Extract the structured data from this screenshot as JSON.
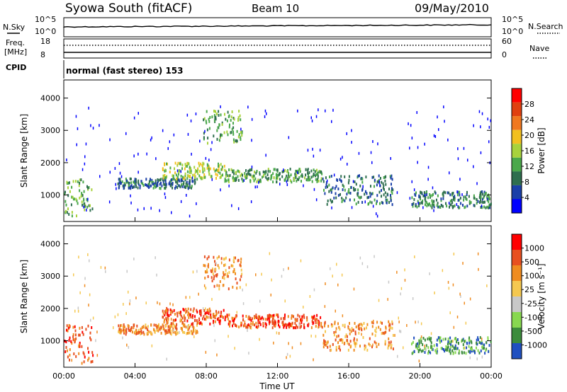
{
  "header": {
    "station": "Syowa South (fitACF)",
    "beam": "Beam 10",
    "date": "09/May/2010"
  },
  "noise_panel": {
    "left_label": "N.Sky",
    "right_label": "N.Search",
    "left_ticks": [
      "10^5",
      "10^0"
    ],
    "right_ticks": [
      "10^5",
      "10^0"
    ]
  },
  "freq_panel": {
    "left_label_1": "Freq.",
    "left_label_2": "[MHz]",
    "right_label": "Nave",
    "left_ticks": [
      "18",
      "8"
    ],
    "right_ticks": [
      "60",
      "0"
    ]
  },
  "cpid": {
    "label": "CPID",
    "value": "normal (fast stereo) 153"
  },
  "colors": {
    "power": [
      "#0000ff",
      "#1a3fa8",
      "#2e6e4e",
      "#4aa84a",
      "#a8d23c",
      "#f2c020",
      "#f07820",
      "#e04010",
      "#ff0000"
    ],
    "velocity": [
      "#ff0000",
      "#e85020",
      "#f08c20",
      "#f5c850",
      "#c8c8c8",
      "#88d850",
      "#3c8c3c",
      "#2050c0"
    ]
  },
  "chart_data": [
    {
      "type": "heatmap",
      "name": "power",
      "ylabel": "Slant Range [km]",
      "y_ticks": [
        "1000",
        "2000",
        "3000",
        "4000"
      ],
      "ylim": [
        180,
        4560
      ],
      "xlim": [
        0,
        24
      ],
      "colorbar": {
        "label": "Power [dB]",
        "ticks": [
          "4",
          "8",
          "12",
          "16",
          "20",
          "24",
          "28"
        ],
        "range": [
          0,
          32
        ]
      },
      "features": [
        {
          "t_start": 0.0,
          "t_end": 1.6,
          "range_start": 300,
          "range_end": 1500,
          "level": 14
        },
        {
          "t_start": 3.0,
          "t_end": 7.5,
          "range_start": 1200,
          "range_end": 1500,
          "level": 9
        },
        {
          "t_start": 5.5,
          "t_end": 9.0,
          "range_start": 1500,
          "range_end": 2000,
          "level": 18
        },
        {
          "t_start": 7.8,
          "t_end": 10.0,
          "range_start": 2600,
          "range_end": 3600,
          "level": 14
        },
        {
          "t_start": 9.0,
          "t_end": 14.5,
          "range_start": 1400,
          "range_end": 1800,
          "level": 13
        },
        {
          "t_start": 14.5,
          "t_end": 18.5,
          "range_start": 700,
          "range_end": 1600,
          "level": 9
        },
        {
          "t_start": 19.5,
          "t_end": 24.0,
          "range_start": 600,
          "range_end": 1100,
          "level": 11
        }
      ]
    },
    {
      "type": "heatmap",
      "name": "velocity",
      "xlabel": "Time UT",
      "ylabel": "Slant Range [km]",
      "x_ticks": [
        "00:00",
        "04:00",
        "08:00",
        "12:00",
        "16:00",
        "20:00",
        "00:00"
      ],
      "y_ticks": [
        "1000",
        "2000",
        "3000",
        "4000"
      ],
      "ylim": [
        180,
        4560
      ],
      "xlim": [
        0,
        24
      ],
      "colorbar": {
        "label": "Velocity [m s⁻¹]",
        "ticks": [
          "1000",
          "500",
          "100",
          "25",
          "-25",
          "-100",
          "-500",
          "-1000"
        ]
      },
      "features": [
        {
          "t_start": 0.0,
          "t_end": 1.6,
          "range_start": 300,
          "range_end": 1500,
          "level": 1
        },
        {
          "t_start": 3.0,
          "t_end": 7.5,
          "range_start": 1200,
          "range_end": 1500,
          "level": 2
        },
        {
          "t_start": 5.5,
          "t_end": 9.0,
          "range_start": 1500,
          "range_end": 2000,
          "level": 1
        },
        {
          "t_start": 7.8,
          "t_end": 10.0,
          "range_start": 2600,
          "range_end": 3600,
          "level": 2
        },
        {
          "t_start": 9.0,
          "t_end": 14.5,
          "range_start": 1400,
          "range_end": 1800,
          "level": 1
        },
        {
          "t_start": 14.5,
          "t_end": 18.5,
          "range_start": 700,
          "range_end": 1600,
          "level": 2
        },
        {
          "t_start": 19.5,
          "t_end": 24.0,
          "range_start": 600,
          "range_end": 1100,
          "level": 6
        }
      ]
    }
  ]
}
